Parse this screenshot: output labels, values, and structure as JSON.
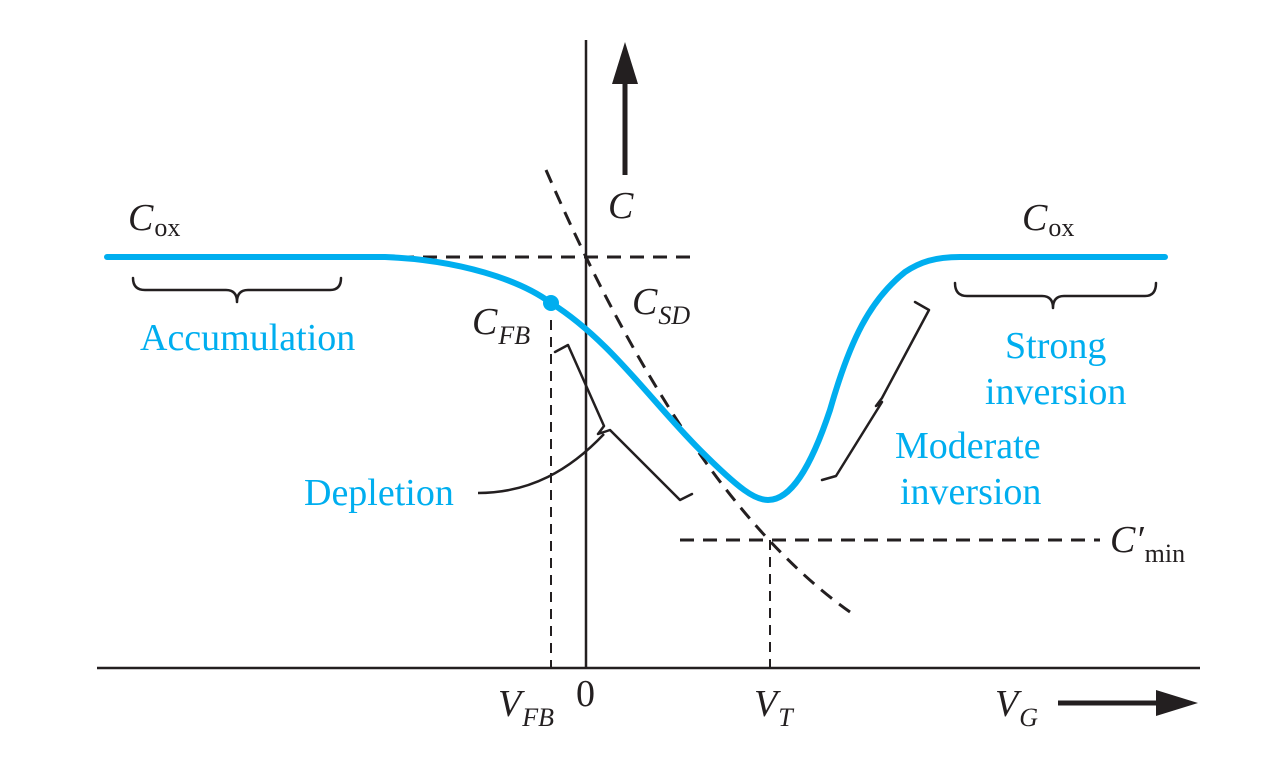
{
  "axes": {
    "vertical_axis_label": "C",
    "horizontal_axis_label": "V",
    "horizontal_axis_subscript": "G",
    "tick_zero": "0"
  },
  "markers": {
    "vfb_label": "V",
    "vfb_subscript": "FB",
    "vt_label": "V",
    "vt_subscript": "T",
    "cfb_label": "C",
    "cfb_subscript": "FB",
    "csd_label": "C",
    "csd_subscript": "SD",
    "cmin_label": "C′",
    "cmin_subscript": "min",
    "cox_left_label": "C",
    "cox_left_subscript": "ox",
    "cox_right_label": "C",
    "cox_right_subscript": "ox"
  },
  "regions": {
    "accumulation": "Accumulation",
    "depletion": "Depletion",
    "moderate_inversion_line1": "Moderate",
    "moderate_inversion_line2": "inversion",
    "strong_inversion_line1": "Strong",
    "strong_inversion_line2": "inversion"
  },
  "colors": {
    "curve": "#00aeef",
    "ink": "#231f20",
    "background": "#ffffff"
  }
}
